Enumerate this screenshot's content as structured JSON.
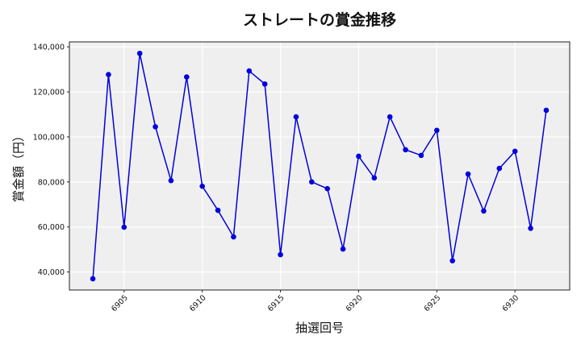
{
  "chart_data": {
    "type": "line",
    "title": "ストレートの賞金推移",
    "xlabel": "抽選回号",
    "ylabel": "賞金額（円）",
    "x": [
      6903,
      6904,
      6905,
      6906,
      6907,
      6908,
      6909,
      6910,
      6911,
      6912,
      6913,
      6914,
      6915,
      6916,
      6917,
      6918,
      6919,
      6920,
      6921,
      6922,
      6923,
      6924,
      6925,
      6926,
      6927,
      6928,
      6929,
      6930,
      6931,
      6932
    ],
    "series": [
      {
        "name": "ストレート",
        "color": "#0000dd",
        "values": [
          37000,
          127700,
          59900,
          137100,
          104500,
          80600,
          126600,
          78100,
          67400,
          55600,
          129300,
          123500,
          47700,
          108900,
          80000,
          77000,
          50200,
          91400,
          81800,
          108900,
          94300,
          91800,
          102900,
          45000,
          83500,
          67100,
          86000,
          93600,
          59400,
          111800
        ]
      }
    ],
    "xticks": [
      6905,
      6910,
      6915,
      6920,
      6925,
      6930
    ],
    "xtick_labels": [
      "6905",
      "6910",
      "6915",
      "6920",
      "6925",
      "6930"
    ],
    "yticks": [
      40000,
      60000,
      80000,
      100000,
      120000,
      140000
    ],
    "ytick_labels": [
      "40,000",
      "60,000",
      "80,000",
      "100,000",
      "120,000",
      "140,000"
    ],
    "xlim": [
      6901.5,
      6933.5
    ],
    "ylim": [
      32000,
      142200
    ],
    "grid": true,
    "legend": null,
    "background": "#efefef"
  }
}
